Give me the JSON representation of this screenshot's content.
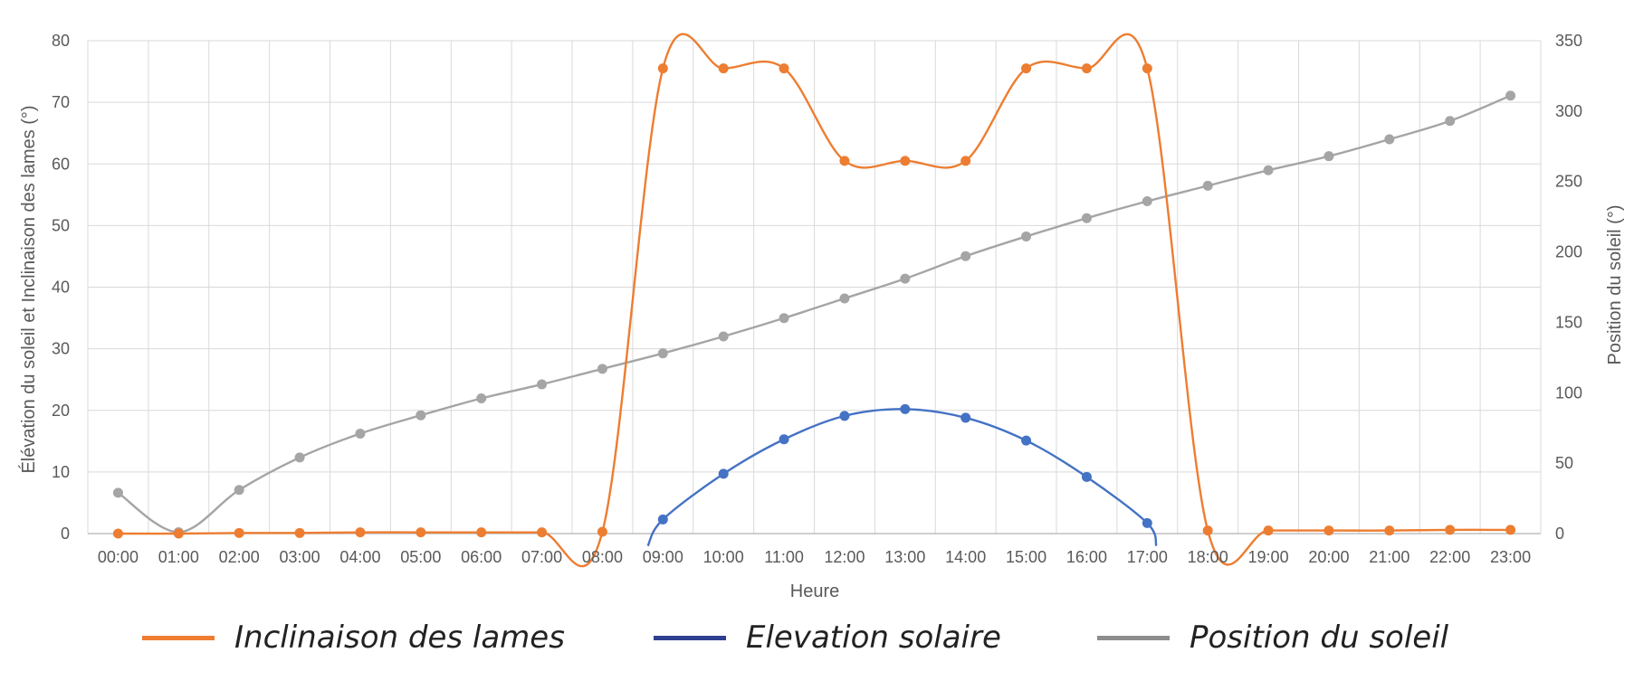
{
  "chart_data": {
    "type": "line",
    "title": "",
    "xlabel": "Heure",
    "ylabel": "Élévation du soleil et Inclinaison des lames (°)",
    "y2label": "Position du soleil (°)",
    "categories": [
      "00:00",
      "01:00",
      "02:00",
      "03:00",
      "04:00",
      "05:00",
      "06:00",
      "07:00",
      "08:00",
      "09:00",
      "10:00",
      "11:00",
      "12:00",
      "13:00",
      "14:00",
      "15:00",
      "16:00",
      "17:00",
      "18:00",
      "19:00",
      "20:00",
      "21:00",
      "22:00",
      "23:00"
    ],
    "ylim": [
      0,
      80
    ],
    "yticks": [
      0,
      10,
      20,
      30,
      40,
      50,
      60,
      70,
      80
    ],
    "y2lim": [
      0,
      350
    ],
    "y2ticks": [
      0,
      50,
      100,
      150,
      200,
      250,
      300,
      350
    ],
    "grid": true,
    "legend_position": "bottom",
    "series": [
      {
        "name": "Inclinaison des lames",
        "axis": "left",
        "color": "#ED7D31",
        "values": [
          0,
          0,
          0.1,
          0.1,
          0.2,
          0.2,
          0.2,
          0.2,
          0.3,
          75.5,
          75.5,
          75.5,
          60.5,
          60.5,
          60.5,
          75.5,
          75.5,
          75.5,
          0.5,
          0.5,
          0.5,
          0.5,
          0.6,
          0.6
        ]
      },
      {
        "name": "Elevation solaire",
        "axis": "left",
        "color": "#4472C4",
        "values": [
          null,
          null,
          null,
          null,
          null,
          null,
          null,
          null,
          null,
          2.3,
          9.7,
          15.3,
          19.1,
          20.2,
          18.8,
          15.1,
          9.2,
          1.7,
          null,
          null,
          null,
          null,
          null,
          null
        ],
        "segment_ends": [
          -2,
          -2
        ]
      },
      {
        "name": "Position du soleil",
        "axis": "right",
        "color": "#A5A5A5",
        "values": [
          29,
          1,
          31,
          54,
          71,
          84,
          96,
          106,
          117,
          128,
          140,
          153,
          167,
          181,
          197,
          211,
          224,
          236,
          247,
          258,
          268,
          280,
          293,
          311
        ]
      }
    ]
  }
}
